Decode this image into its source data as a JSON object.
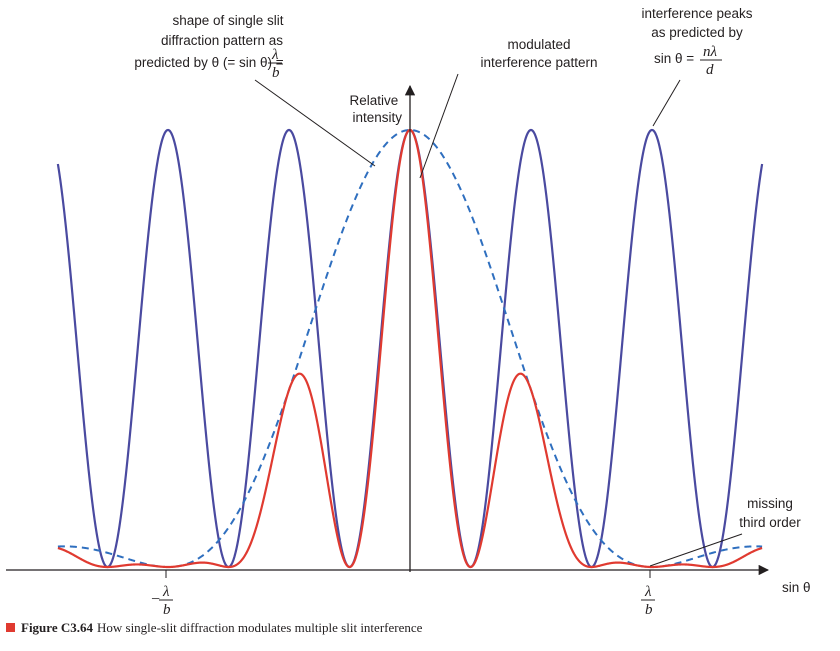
{
  "chart_data": {
    "type": "line",
    "title": "",
    "xlabel": "sin θ",
    "ylabel": "Relative intensity",
    "xlim": [
      -3.2,
      3.2
    ],
    "ylim": [
      0,
      1.08
    ],
    "grid": false,
    "x_ticks": [
      {
        "x": -2,
        "sign": "−",
        "num": "λ",
        "den": "b"
      },
      {
        "x": 2,
        "sign": "",
        "num": "λ",
        "den": "b"
      }
    ],
    "series": [
      {
        "name": "interference pattern",
        "style": "solid",
        "color": "#4a4aa0",
        "function": "cos^2(pi*x)",
        "x_range": [
          -3.2,
          3.2
        ],
        "peak_spacing": 1,
        "peaks": [
          -3,
          -2,
          -1,
          0,
          1,
          2,
          3
        ]
      },
      {
        "name": "single slit diffraction envelope",
        "style": "dashed",
        "color": "#2f6fbf",
        "function": "sinc^2(x/2)",
        "x_range": [
          -3.2,
          3.2
        ],
        "first_minima": [
          -2,
          2
        ]
      },
      {
        "name": "modulated interference pattern",
        "style": "solid",
        "color": "#e03a30",
        "function": "cos^2(pi*x)*sinc^2(x/2)",
        "x_range": [
          -3.2,
          3.2
        ],
        "peaks": [
          {
            "x": -2,
            "y": 0
          },
          {
            "x": -1,
            "y": 0.405
          },
          {
            "x": 0,
            "y": 1
          },
          {
            "x": 1,
            "y": 0.405
          },
          {
            "x": 2,
            "y": 0
          }
        ]
      }
    ],
    "annotations": [
      {
        "id": "single-slit",
        "lines": [
          "shape of single slit",
          "diffraction pattern as",
          "predicted by θ (= sin θ) ="
        ],
        "fraction": {
          "num": "λ",
          "den": "b"
        }
      },
      {
        "id": "modulated",
        "lines": [
          "modulated",
          "interference pattern"
        ]
      },
      {
        "id": "peaks",
        "lines": [
          "interference peaks",
          "as predicted by",
          "sin θ ="
        ],
        "fraction": {
          "num": "nλ",
          "den": "d"
        }
      },
      {
        "id": "missing",
        "lines": [
          "missing",
          "third order"
        ]
      }
    ]
  },
  "caption": {
    "marker_color": "#e03a30",
    "label": "Figure C3.64",
    "text": "How single-slit diffraction modulates multiple slit interference"
  }
}
